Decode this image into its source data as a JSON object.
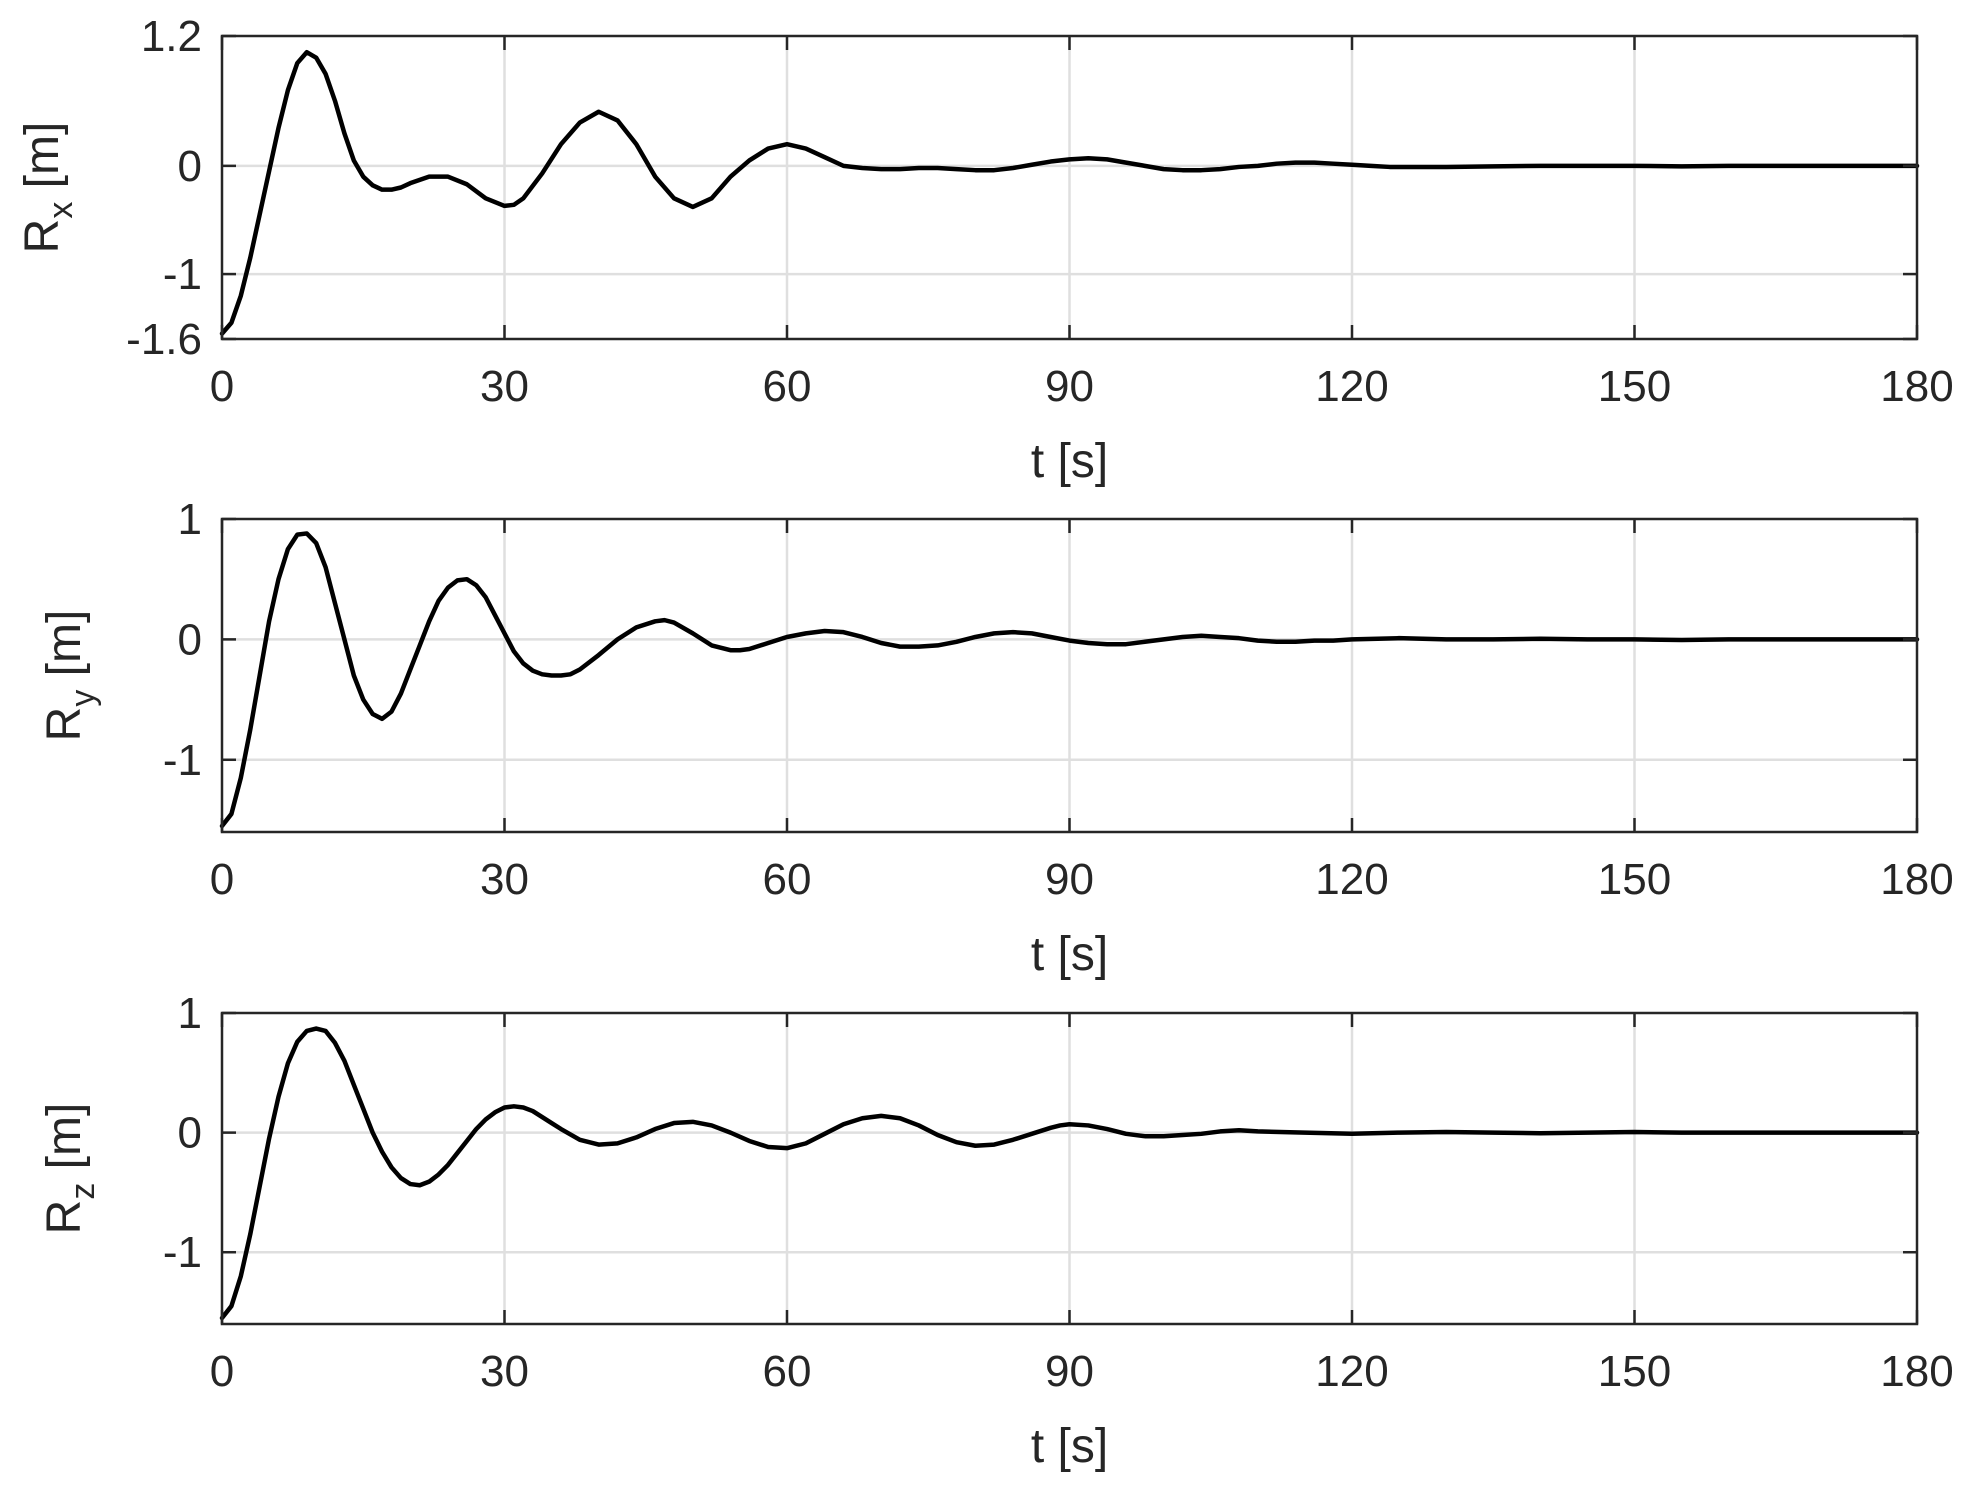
{
  "chart_data": [
    {
      "type": "line",
      "ylabel": {
        "base": "R",
        "sub": "x",
        "unit": " [m]"
      },
      "xlabel": "t [s]",
      "xlim": [
        0,
        180
      ],
      "ylim": [
        -1.6,
        1.2
      ],
      "xticks": [
        0,
        30,
        60,
        90,
        120,
        150,
        180
      ],
      "xtick_labels": [
        "0",
        "30",
        "60",
        "90",
        "120",
        "150",
        "180"
      ],
      "yticks": [
        -1.6,
        -1,
        0,
        1.2
      ],
      "ytick_labels": [
        "-1.6",
        "-1",
        "0",
        "1.2"
      ],
      "grid": true,
      "line_color": "#000000",
      "grid_color": "#dfdfdf",
      "series": [
        {
          "x": [
            0,
            1,
            2,
            3,
            4,
            5,
            6,
            7,
            8,
            9,
            10,
            11,
            12,
            13,
            14,
            15,
            16,
            17,
            18,
            19,
            20,
            22,
            24,
            26,
            28,
            30,
            31,
            32,
            34,
            36,
            38,
            40,
            42,
            44,
            46,
            48,
            50,
            52,
            54,
            56,
            58,
            60,
            62,
            64,
            66,
            68,
            70,
            72,
            74,
            76,
            78,
            80,
            82,
            84,
            86,
            88,
            90,
            92,
            94,
            96,
            98,
            100,
            102,
            104,
            106,
            108,
            110,
            112,
            114,
            116,
            118,
            120,
            122,
            124,
            126,
            130,
            135,
            140,
            145,
            150,
            155,
            160,
            165,
            170,
            175,
            180
          ],
          "y": [
            -1.55,
            -1.45,
            -1.2,
            -0.85,
            -0.45,
            -0.05,
            0.35,
            0.7,
            0.95,
            1.05,
            1.0,
            0.85,
            0.6,
            0.3,
            0.05,
            -0.1,
            -0.18,
            -0.22,
            -0.22,
            -0.2,
            -0.16,
            -0.1,
            -0.1,
            -0.17,
            -0.3,
            -0.37,
            -0.36,
            -0.3,
            -0.07,
            0.2,
            0.4,
            0.5,
            0.42,
            0.2,
            -0.1,
            -0.3,
            -0.38,
            -0.3,
            -0.1,
            0.05,
            0.16,
            0.2,
            0.16,
            0.08,
            0.0,
            -0.02,
            -0.03,
            -0.03,
            -0.02,
            -0.02,
            -0.03,
            -0.04,
            -0.04,
            -0.02,
            0.01,
            0.04,
            0.06,
            0.07,
            0.06,
            0.03,
            0.0,
            -0.03,
            -0.04,
            -0.04,
            -0.03,
            -0.01,
            0.0,
            0.02,
            0.03,
            0.03,
            0.02,
            0.01,
            0.0,
            -0.01,
            -0.01,
            -0.01,
            -0.005,
            0.0,
            0.0,
            0.0,
            -0.005,
            0.0,
            0.0,
            0.0,
            0.0,
            0.0
          ]
        }
      ]
    },
    {
      "type": "line",
      "ylabel": {
        "base": "R",
        "sub": "y",
        "unit": " [m]"
      },
      "xlabel": "t [s]",
      "xlim": [
        0,
        180
      ],
      "ylim": [
        -1.6,
        1
      ],
      "xticks": [
        0,
        30,
        60,
        90,
        120,
        150,
        180
      ],
      "xtick_labels": [
        "0",
        "30",
        "60",
        "90",
        "120",
        "150",
        "180"
      ],
      "yticks": [
        -1,
        0,
        1
      ],
      "ytick_labels": [
        "-1",
        "0",
        "1"
      ],
      "grid": true,
      "line_color": "#000000",
      "grid_color": "#dfdfdf",
      "series": [
        {
          "x": [
            0,
            1,
            2,
            3,
            4,
            5,
            6,
            7,
            8,
            9,
            10,
            11,
            12,
            13,
            14,
            15,
            16,
            17,
            18,
            19,
            20,
            21,
            22,
            23,
            24,
            25,
            26,
            27,
            28,
            29,
            30,
            31,
            32,
            33,
            34,
            35,
            36,
            37,
            38,
            40,
            42,
            44,
            46,
            47,
            48,
            50,
            52,
            54,
            55,
            56,
            58,
            60,
            62,
            64,
            66,
            68,
            70,
            72,
            74,
            76,
            78,
            80,
            82,
            84,
            86,
            88,
            90,
            92,
            94,
            96,
            98,
            100,
            102,
            104,
            106,
            108,
            110,
            112,
            114,
            116,
            118,
            120,
            125,
            130,
            135,
            140,
            145,
            150,
            155,
            160,
            165,
            170,
            175,
            180
          ],
          "y": [
            -1.55,
            -1.45,
            -1.15,
            -0.75,
            -0.3,
            0.15,
            0.5,
            0.75,
            0.87,
            0.88,
            0.8,
            0.6,
            0.3,
            0.0,
            -0.3,
            -0.5,
            -0.62,
            -0.66,
            -0.6,
            -0.45,
            -0.25,
            -0.05,
            0.15,
            0.32,
            0.43,
            0.49,
            0.5,
            0.45,
            0.35,
            0.2,
            0.05,
            -0.1,
            -0.2,
            -0.26,
            -0.29,
            -0.3,
            -0.3,
            -0.29,
            -0.25,
            -0.13,
            0.0,
            0.1,
            0.15,
            0.16,
            0.14,
            0.05,
            -0.05,
            -0.09,
            -0.09,
            -0.08,
            -0.03,
            0.02,
            0.05,
            0.07,
            0.06,
            0.02,
            -0.03,
            -0.06,
            -0.06,
            -0.05,
            -0.02,
            0.02,
            0.05,
            0.06,
            0.05,
            0.02,
            -0.01,
            -0.03,
            -0.04,
            -0.04,
            -0.02,
            0.0,
            0.02,
            0.03,
            0.02,
            0.01,
            -0.01,
            -0.02,
            -0.02,
            -0.01,
            -0.01,
            0.0,
            0.01,
            0.0,
            0.0,
            0.005,
            0.0,
            0.0,
            -0.005,
            0.0,
            0.0,
            0.0,
            0.0,
            0.0
          ]
        }
      ]
    },
    {
      "type": "line",
      "ylabel": {
        "base": "R",
        "sub": "z",
        "unit": " [m]"
      },
      "xlabel": "t [s]",
      "xlim": [
        0,
        180
      ],
      "ylim": [
        -1.6,
        1
      ],
      "xticks": [
        0,
        30,
        60,
        90,
        120,
        150,
        180
      ],
      "xtick_labels": [
        "0",
        "30",
        "60",
        "90",
        "120",
        "150",
        "180"
      ],
      "yticks": [
        -1,
        0,
        1
      ],
      "ytick_labels": [
        "-1",
        "0",
        "1"
      ],
      "grid": true,
      "line_color": "#000000",
      "grid_color": "#dfdfdf",
      "series": [
        {
          "x": [
            0,
            1,
            2,
            3,
            4,
            5,
            6,
            7,
            8,
            9,
            10,
            11,
            12,
            13,
            14,
            15,
            16,
            17,
            18,
            19,
            20,
            21,
            22,
            23,
            24,
            25,
            26,
            27,
            28,
            29,
            30,
            31,
            32,
            33,
            34,
            35,
            36,
            38,
            40,
            42,
            44,
            46,
            48,
            50,
            52,
            54,
            56,
            58,
            60,
            62,
            64,
            66,
            68,
            70,
            72,
            74,
            76,
            78,
            80,
            82,
            84,
            86,
            88,
            89,
            90,
            92,
            94,
            96,
            98,
            100,
            102,
            104,
            106,
            108,
            110,
            115,
            120,
            125,
            130,
            135,
            140,
            145,
            150,
            155,
            160,
            165,
            170,
            175,
            180
          ],
          "y": [
            -1.55,
            -1.45,
            -1.2,
            -0.85,
            -0.45,
            -0.05,
            0.3,
            0.58,
            0.76,
            0.85,
            0.87,
            0.85,
            0.75,
            0.6,
            0.4,
            0.2,
            0.0,
            -0.16,
            -0.29,
            -0.38,
            -0.43,
            -0.44,
            -0.41,
            -0.35,
            -0.27,
            -0.17,
            -0.07,
            0.03,
            0.11,
            0.17,
            0.21,
            0.22,
            0.21,
            0.18,
            0.13,
            0.08,
            0.03,
            -0.06,
            -0.1,
            -0.09,
            -0.04,
            0.03,
            0.08,
            0.09,
            0.06,
            0.0,
            -0.07,
            -0.12,
            -0.13,
            -0.09,
            -0.01,
            0.07,
            0.12,
            0.14,
            0.12,
            0.06,
            -0.02,
            -0.08,
            -0.11,
            -0.1,
            -0.06,
            -0.01,
            0.04,
            0.06,
            0.07,
            0.06,
            0.03,
            -0.01,
            -0.03,
            -0.03,
            -0.02,
            -0.01,
            0.01,
            0.02,
            0.01,
            0.0,
            -0.01,
            0.0,
            0.005,
            0.0,
            -0.005,
            0.0,
            0.005,
            0.0,
            0.0,
            0.0,
            0.0,
            0.0,
            0.0
          ]
        }
      ]
    }
  ]
}
